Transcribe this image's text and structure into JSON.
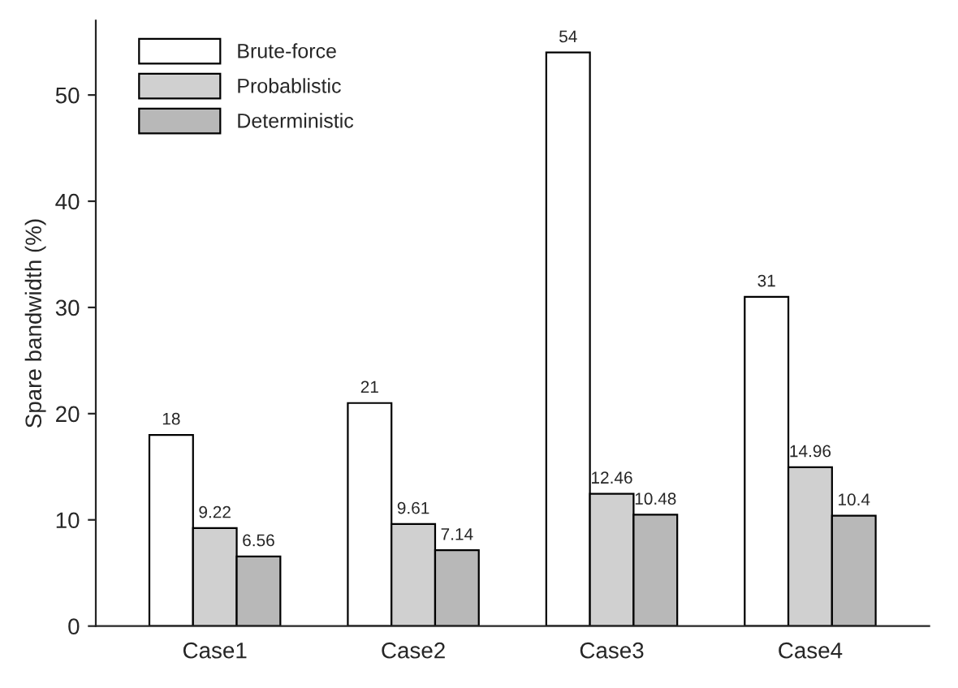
{
  "chart_data": {
    "type": "bar",
    "ylabel": "Spare bandwidth (%)",
    "categories": [
      "Case1",
      "Case2",
      "Case3",
      "Case4"
    ],
    "series": [
      {
        "name": "Brute-force",
        "color": "#ffffff",
        "values": [
          18,
          21,
          54,
          31
        ]
      },
      {
        "name": "Probablistic",
        "color": "#d0d0d0",
        "values": [
          9.22,
          9.61,
          12.46,
          14.96
        ]
      },
      {
        "name": "Deterministic",
        "color": "#b8b8b8",
        "values": [
          6.56,
          7.14,
          10.48,
          10.4
        ]
      }
    ],
    "ylim": [
      0,
      57
    ],
    "yticks": [
      0,
      10,
      20,
      30,
      40,
      50
    ],
    "grid": false,
    "legend": "top left",
    "data_labels": true
  }
}
